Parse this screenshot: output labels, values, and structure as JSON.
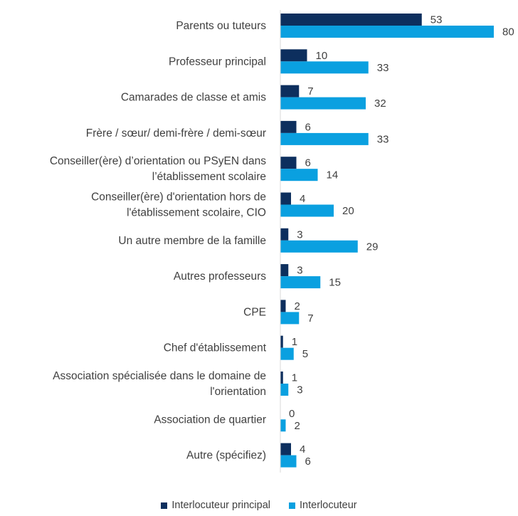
{
  "chart_data": {
    "type": "bar",
    "orientation": "horizontal",
    "categories": [
      [
        "Parents ou tuteurs"
      ],
      [
        "Professeur principal"
      ],
      [
        "Camarades de classe et amis"
      ],
      [
        "Frère / sœur/ demi-frère / demi-sœur"
      ],
      [
        "Conseiller(ère)  d’orientation ou PSyEN dans",
        "l’établissement scolaire"
      ],
      [
        "Conseiller(ère) d'orientation hors de",
        "l'établissement scolaire, CIO"
      ],
      [
        "Un autre membre de la famille"
      ],
      [
        "Autres professeurs"
      ],
      [
        "CPE"
      ],
      [
        "Chef d'établissement"
      ],
      [
        "Association spécialisée dans le domaine de",
        "l'orientation"
      ],
      [
        "Association de quartier"
      ],
      [
        "Autre (spécifiez)"
      ]
    ],
    "series": [
      {
        "name": "Interlocuteur principal",
        "color": "#0d2f5e",
        "values": [
          53,
          10,
          7,
          6,
          6,
          4,
          3,
          3,
          2,
          1,
          1,
          0,
          4
        ]
      },
      {
        "name": "Interlocuteur",
        "color": "#0aa0e0",
        "values": [
          80,
          33,
          32,
          33,
          14,
          20,
          29,
          15,
          7,
          5,
          3,
          2,
          6
        ]
      }
    ],
    "data_labels": true,
    "xlim": [
      0,
      80
    ],
    "grid": false,
    "legend": "bottom",
    "axis_line_color": "#d9d9d9",
    "title": "",
    "xlabel": "",
    "ylabel": ""
  }
}
